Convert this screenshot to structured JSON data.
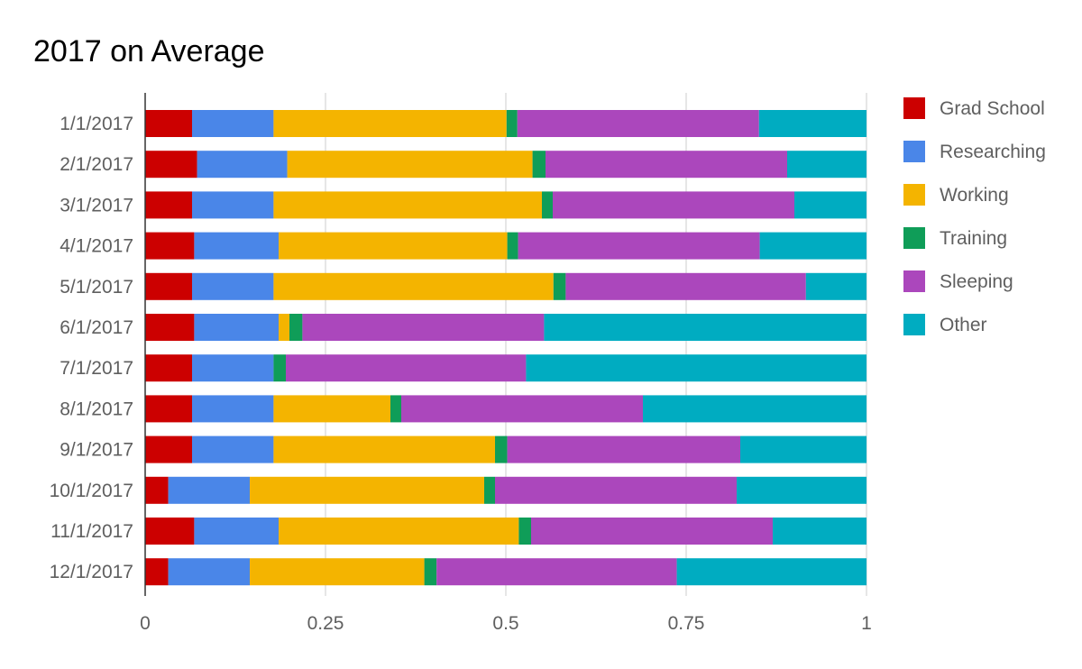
{
  "chart_data": {
    "type": "bar",
    "orientation": "horizontal",
    "stacked": true,
    "title": "2017 on Average",
    "xlabel": "",
    "ylabel": "",
    "xlim": [
      0,
      1
    ],
    "x_ticks": [
      {
        "value": 0,
        "label": "0"
      },
      {
        "value": 0.25,
        "label": "0.25"
      },
      {
        "value": 0.5,
        "label": "0.5"
      },
      {
        "value": 0.75,
        "label": "0.75"
      },
      {
        "value": 1,
        "label": "1"
      }
    ],
    "grid": true,
    "legend_position": "right",
    "categories": [
      "1/1/2017",
      "2/1/2017",
      "3/1/2017",
      "4/1/2017",
      "5/1/2017",
      "6/1/2017",
      "7/1/2017",
      "8/1/2017",
      "9/1/2017",
      "10/1/2017",
      "11/1/2017",
      "12/1/2017"
    ],
    "series": [
      {
        "name": "Grad School",
        "color": "#cc0000",
        "values": [
          0.065,
          0.072,
          0.065,
          0.068,
          0.065,
          0.068,
          0.065,
          0.065,
          0.065,
          0.032,
          0.068,
          0.032
        ]
      },
      {
        "name": "Researching",
        "color": "#4a86e8",
        "values": [
          0.113,
          0.125,
          0.113,
          0.117,
          0.113,
          0.117,
          0.113,
          0.113,
          0.113,
          0.113,
          0.117,
          0.113
        ]
      },
      {
        "name": "Working",
        "color": "#f4b400",
        "values": [
          0.323,
          0.34,
          0.372,
          0.317,
          0.388,
          0.015,
          0.0,
          0.162,
          0.307,
          0.325,
          0.333,
          0.242
        ]
      },
      {
        "name": "Training",
        "color": "#0f9d58",
        "values": [
          0.015,
          0.018,
          0.015,
          0.015,
          0.017,
          0.018,
          0.017,
          0.015,
          0.017,
          0.015,
          0.017,
          0.017
        ]
      },
      {
        "name": "Sleeping",
        "color": "#ab47bc",
        "values": [
          0.335,
          0.335,
          0.335,
          0.335,
          0.333,
          0.335,
          0.333,
          0.335,
          0.323,
          0.335,
          0.335,
          0.333
        ]
      },
      {
        "name": "Other",
        "color": "#00acc1",
        "values": [
          0.149,
          0.11,
          0.1,
          0.148,
          0.084,
          0.447,
          0.472,
          0.31,
          0.175,
          0.18,
          0.13,
          0.263
        ]
      }
    ]
  }
}
